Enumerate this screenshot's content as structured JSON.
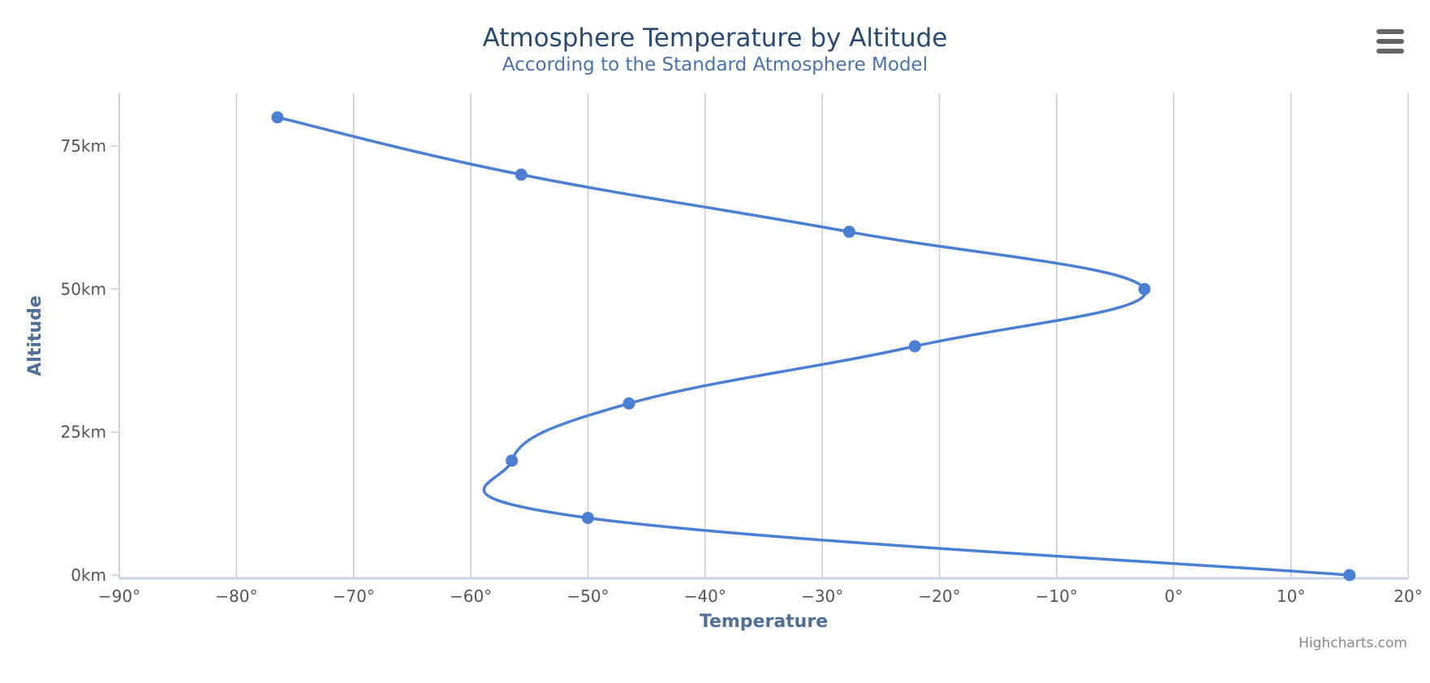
{
  "chart_data": {
    "type": "line",
    "title": "Atmosphere Temperature by Altitude",
    "subtitle": "According to the Standard Atmosphere Model",
    "xlabel": "Temperature",
    "ylabel": "Altitude",
    "x_unit_suffix": "°",
    "y_unit_suffix": "km",
    "xlim": [
      -90,
      20
    ],
    "ylim": [
      0,
      85
    ],
    "x_ticks": [
      -90,
      -80,
      -70,
      -60,
      -50,
      -40,
      -30,
      -20,
      -10,
      0,
      10,
      20
    ],
    "y_ticks": [
      0,
      25,
      50,
      75
    ],
    "x_grid": true,
    "y_grid": false,
    "inverted_axes": true,
    "smooth": true,
    "series": [
      {
        "color": "#4a7fd4",
        "points": [
          {
            "altitude": 0,
            "temperature": 15
          },
          {
            "altitude": 10,
            "temperature": -50
          },
          {
            "altitude": 20,
            "temperature": -56.5
          },
          {
            "altitude": 30,
            "temperature": -46.5
          },
          {
            "altitude": 40,
            "temperature": -22.1
          },
          {
            "altitude": 50,
            "temperature": -2.5
          },
          {
            "altitude": 60,
            "temperature": -27.7
          },
          {
            "altitude": 70,
            "temperature": -55.7
          },
          {
            "altitude": 80,
            "temperature": -76.5
          }
        ]
      }
    ]
  },
  "credits": "Highcharts.com",
  "colors": {
    "title": "#2b4a73",
    "subtitle": "#4a72b0",
    "grid": "#c8ccd2",
    "axis_line": "#c8d4e6",
    "tick_label": "#555555",
    "axis_title": "#4f6e99",
    "menu_icon": "#666666"
  },
  "icons": {
    "menu": "hamburger-menu-icon"
  }
}
